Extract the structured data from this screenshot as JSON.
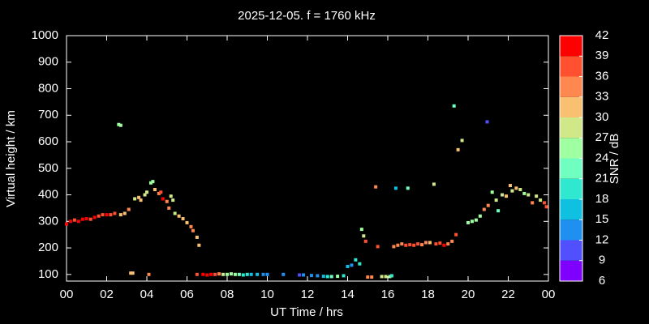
{
  "chart_data": {
    "type": "scatter",
    "title": "2025-12-05. f = 1760 kHz",
    "x_label": "UT Time / hrs",
    "y_label": "Virtual height / km",
    "xlim": [
      0,
      24
    ],
    "xticks": [
      {
        "value": 0,
        "label": "00"
      },
      {
        "value": 2,
        "label": "02"
      },
      {
        "value": 4,
        "label": "04"
      },
      {
        "value": 6,
        "label": "06"
      },
      {
        "value": 8,
        "label": "08"
      },
      10,
      12,
      14,
      16,
      18,
      20,
      22,
      {
        "value": 24,
        "label": "00"
      }
    ],
    "ylim": [
      75,
      1000
    ],
    "yticks": [
      100,
      200,
      300,
      400,
      500,
      600,
      700,
      800,
      900,
      1000
    ],
    "colorbar": {
      "label": "SNR / dB",
      "lim": [
        6,
        42
      ],
      "ticks": [
        6,
        9,
        12,
        15,
        18,
        21,
        24,
        27,
        30,
        33,
        36,
        39,
        42
      ],
      "colors": [
        "#8000ff",
        "#5050ff",
        "#2090f0",
        "#10c0e0",
        "#30e8d0",
        "#70ffc0",
        "#a0ffa0",
        "#d0e888",
        "#f8c070",
        "#ff8850",
        "#ff5030",
        "#ff0000"
      ]
    },
    "series": [
      {
        "x": [
          0.0,
          0.2,
          0.4,
          0.6,
          0.8,
          1.0,
          1.2,
          1.4,
          1.6,
          1.8,
          2.0,
          2.2,
          2.4,
          2.6,
          2.7,
          2.7,
          2.9,
          3.1,
          3.2,
          3.3,
          3.4,
          3.6,
          3.7,
          3.9,
          4.0,
          4.2,
          4.3,
          4.4,
          4.6,
          4.7,
          4.8,
          5.0,
          5.1,
          5.2,
          5.3,
          5.4,
          5.6,
          5.8,
          6.0,
          6.2,
          6.3,
          6.5,
          6.6,
          4.1,
          6.5,
          6.8,
          7.0,
          7.2,
          7.4,
          7.6,
          7.8,
          8.0,
          8.2,
          8.4,
          8.6,
          8.8,
          9.0,
          9.2,
          9.5,
          9.8,
          10.0,
          10.8,
          11.6,
          11.8,
          12.2,
          12.5,
          12.8,
          13.0,
          13.2,
          13.5,
          13.8,
          14.0,
          14.2,
          14.4,
          14.6,
          14.7,
          14.8,
          14.9,
          15.0,
          15.2,
          15.4,
          15.5,
          15.7,
          15.9,
          16.1,
          16.2,
          16.4,
          17.0,
          16.3,
          16.5,
          16.7,
          16.9,
          17.1,
          17.3,
          17.5,
          17.7,
          17.9,
          18.1,
          18.3,
          18.4,
          18.6,
          18.8,
          19.0,
          19.2,
          19.4,
          19.3,
          19.5,
          19.7,
          20.0,
          20.2,
          20.4,
          20.6,
          20.8,
          21.0,
          20.95,
          21.2,
          21.4,
          21.5,
          21.7,
          21.9,
          22.1,
          22.2,
          22.4,
          22.6,
          22.8,
          23.0,
          23.2,
          23.4,
          23.6,
          23.8,
          23.9
        ],
        "y": [
          290,
          300,
          305,
          300,
          308,
          310,
          308,
          315,
          320,
          325,
          325,
          325,
          330,
          665,
          662,
          325,
          330,
          345,
          105,
          105,
          385,
          390,
          380,
          400,
          410,
          445,
          450,
          420,
          405,
          410,
          385,
          375,
          350,
          395,
          380,
          330,
          320,
          310,
          295,
          280,
          265,
          240,
          210,
          100,
          100,
          100,
          98,
          100,
          100,
          102,
          100,
          100,
          102,
          100,
          100,
          98,
          100,
          100,
          100,
          100,
          100,
          100,
          98,
          98,
          96,
          95,
          93,
          92,
          92,
          93,
          95,
          130,
          135,
          155,
          140,
          270,
          245,
          225,
          90,
          90,
          430,
          205,
          92,
          92,
          92,
          95,
          425,
          425,
          205,
          210,
          215,
          210,
          212,
          210,
          215,
          212,
          220,
          220,
          440,
          215,
          218,
          210,
          215,
          225,
          250,
          735,
          570,
          605,
          295,
          300,
          305,
          320,
          345,
          360,
          675,
          410,
          380,
          340,
          400,
          395,
          435,
          415,
          425,
          420,
          405,
          400,
          370,
          395,
          380,
          370,
          355
        ],
        "snr": [
          39,
          40,
          38,
          39,
          40,
          39,
          38,
          39,
          37,
          36,
          40,
          38,
          37,
          24,
          24,
          31,
          30,
          35,
          31,
          32,
          29,
          30,
          30,
          29,
          28,
          25,
          25,
          32,
          33,
          36,
          39,
          34,
          35,
          29,
          28,
          28,
          30,
          31,
          32,
          33,
          34,
          31,
          30,
          35,
          36,
          40,
          39,
          40,
          38,
          35,
          28,
          26,
          24,
          25,
          22,
          20,
          18,
          15,
          17,
          14,
          13,
          12,
          11,
          12,
          14,
          12,
          16,
          19,
          22,
          25,
          20,
          16,
          14,
          18,
          20,
          25,
          28,
          36,
          34,
          33,
          34,
          38,
          28,
          27,
          24,
          18,
          16,
          21,
          33,
          34,
          35,
          36,
          37,
          38,
          36,
          35,
          33,
          32,
          28,
          38,
          36,
          39,
          35,
          34,
          38,
          22,
          31,
          27,
          25,
          24,
          24,
          26,
          33,
          34,
          11,
          26,
          29,
          23,
          27,
          30,
          31,
          28,
          30,
          29,
          24,
          27,
          33,
          28,
          27,
          36,
          37
        ]
      }
    ]
  }
}
